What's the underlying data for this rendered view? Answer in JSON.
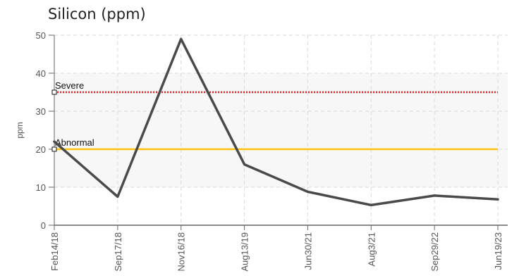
{
  "chart_data": {
    "type": "line",
    "title": "Silicon (ppm)",
    "ylabel": "ppm",
    "xlabel": "",
    "ylim": [
      0,
      50
    ],
    "yticks": [
      0,
      10,
      20,
      30,
      40,
      50
    ],
    "grid": true,
    "categories": [
      "Feb14/18",
      "Sep17/18",
      "Nov16/18",
      "Aug13/19",
      "Jun30/21",
      "Aug3/21",
      "Sep29/22",
      "Jun19/23"
    ],
    "series": [
      {
        "values": [
          22,
          7.5,
          49,
          16,
          8.8,
          5.3,
          7.8,
          6.8
        ],
        "color": "#4a4a4a"
      }
    ],
    "thresholds": [
      {
        "label": "Severe",
        "value": 35,
        "color": "#ee1c24",
        "style": "dotted"
      },
      {
        "label": "Abnormal",
        "value": 20,
        "color": "#ffc20e",
        "style": "solid"
      }
    ],
    "band": {
      "from": 10,
      "to": 40,
      "color": "#f7f7f7"
    }
  }
}
